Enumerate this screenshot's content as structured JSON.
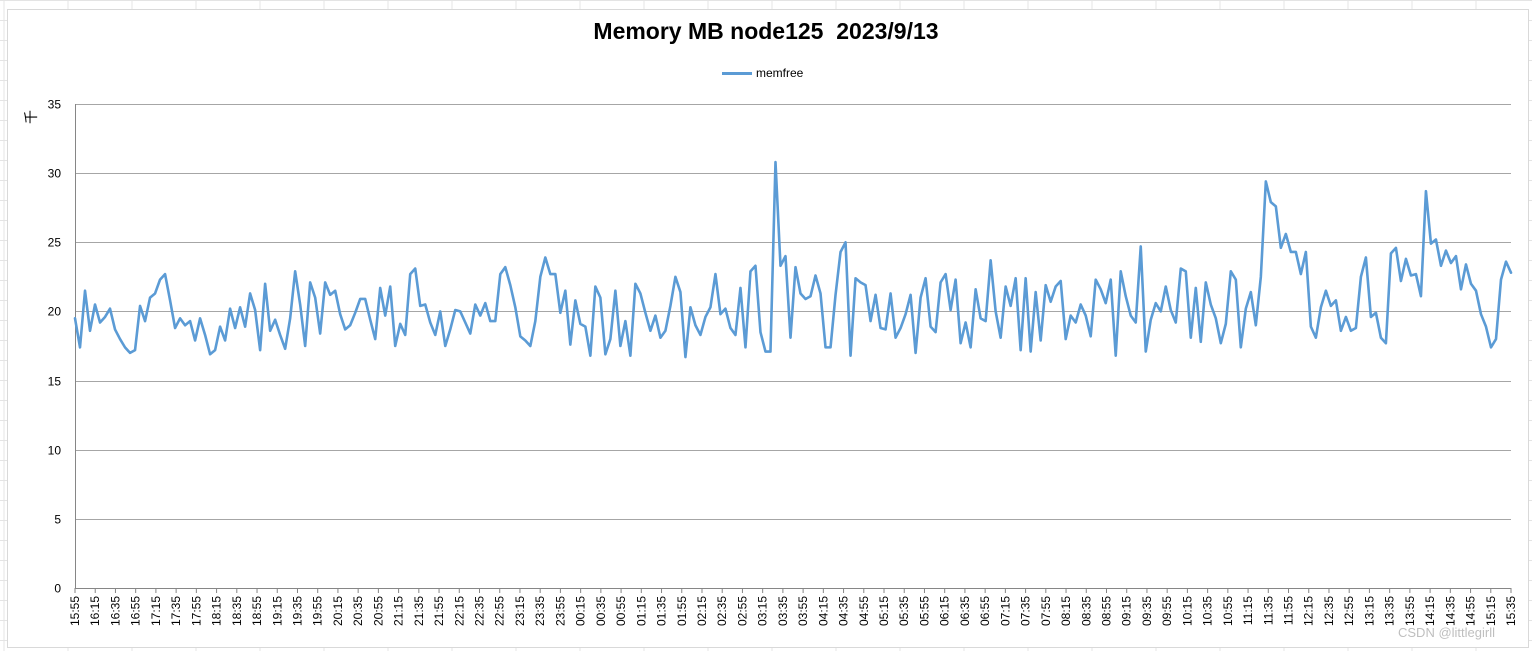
{
  "chart_data": {
    "type": "line",
    "title": "Memory MB node125  2023/9/13",
    "ylabel": "千",
    "legend": "top-center",
    "grid": true,
    "ylim": [
      0,
      35
    ],
    "y_ticks": [
      0,
      5,
      10,
      15,
      20,
      25,
      30,
      35
    ],
    "x_tick_labels": [
      "15:55",
      "16:15",
      "16:35",
      "16:55",
      "17:15",
      "17:35",
      "17:55",
      "18:15",
      "18:35",
      "18:55",
      "19:15",
      "19:35",
      "19:55",
      "20:15",
      "20:35",
      "20:55",
      "21:15",
      "21:35",
      "21:55",
      "22:15",
      "22:35",
      "22:55",
      "23:15",
      "23:35",
      "23:55",
      "00:15",
      "00:35",
      "00:55",
      "01:15",
      "01:35",
      "01:55",
      "02:15",
      "02:35",
      "02:55",
      "03:15",
      "03:35",
      "03:55",
      "04:15",
      "04:35",
      "04:55",
      "05:15",
      "05:35",
      "05:55",
      "06:15",
      "06:35",
      "06:55",
      "07:15",
      "07:35",
      "07:55",
      "08:15",
      "08:35",
      "08:55",
      "09:15",
      "09:35",
      "09:55",
      "10:15",
      "10:35",
      "10:55",
      "11:15",
      "11:35",
      "11:55",
      "12:15",
      "12:35",
      "12:55",
      "13:15",
      "13:35",
      "13:55",
      "14:15",
      "14:35",
      "14:55",
      "15:15",
      "15:35"
    ],
    "series": [
      {
        "name": "memfree",
        "color": "#5b9bd5",
        "values": [
          19.5,
          17.4,
          21.5,
          18.6,
          20.5,
          19.2,
          19.6,
          20.2,
          18.7,
          18.0,
          17.4,
          17.0,
          17.2,
          20.4,
          19.3,
          21.0,
          21.3,
          22.3,
          22.7,
          20.8,
          18.8,
          19.5,
          19.0,
          19.3,
          17.9,
          19.5,
          18.3,
          16.9,
          17.2,
          18.9,
          17.9,
          20.2,
          18.8,
          20.3,
          18.9,
          21.3,
          20.1,
          17.2,
          22.0,
          18.6,
          19.4,
          18.3,
          17.3,
          19.5,
          22.9,
          20.5,
          17.5,
          22.1,
          21.0,
          18.4,
          22.1,
          21.2,
          21.5,
          19.8,
          18.7,
          19.0,
          19.9,
          20.9,
          20.9,
          19.4,
          18.0,
          21.7,
          19.7,
          21.8,
          17.5,
          19.1,
          18.3,
          22.7,
          23.1,
          20.4,
          20.5,
          19.2,
          18.3,
          20.0,
          17.5,
          18.7,
          20.1,
          20.0,
          19.2,
          18.4,
          20.5,
          19.7,
          20.6,
          19.3,
          19.3,
          22.7,
          23.2,
          21.9,
          20.3,
          18.2,
          17.9,
          17.5,
          19.3,
          22.5,
          23.9,
          22.7,
          22.7,
          19.9,
          21.5,
          17.6,
          20.8,
          19.1,
          18.9,
          16.8,
          21.8,
          21.0,
          16.9,
          18.0,
          21.5,
          17.5,
          19.3,
          16.8,
          22.0,
          21.3,
          19.9,
          18.6,
          19.7,
          18.1,
          18.6,
          20.4,
          22.5,
          21.4,
          16.7,
          20.3,
          19.0,
          18.3,
          19.6,
          20.3,
          22.7,
          19.8,
          20.2,
          18.8,
          18.3,
          21.7,
          17.4,
          22.9,
          23.3,
          18.5,
          17.1,
          17.1,
          30.8,
          23.3,
          24.0,
          18.1,
          23.2,
          21.3,
          20.9,
          21.1,
          22.6,
          21.3,
          17.4,
          17.4,
          21.2,
          24.3,
          25.0,
          16.8,
          22.4,
          22.1,
          21.9,
          19.3,
          21.2,
          18.8,
          18.7,
          21.3,
          18.1,
          18.8,
          19.8,
          21.2,
          17.0,
          21.0,
          22.4,
          18.9,
          18.5,
          22.1,
          22.7,
          20.1,
          22.3,
          17.7,
          19.2,
          17.4,
          21.6,
          19.5,
          19.3,
          23.7,
          20.0,
          18.1,
          21.8,
          20.4,
          22.4,
          17.2,
          22.4,
          17.1,
          21.4,
          17.9,
          21.9,
          20.7,
          21.8,
          22.2,
          18.0,
          19.7,
          19.2,
          20.5,
          19.7,
          18.2,
          22.3,
          21.6,
          20.6,
          22.3,
          16.8,
          22.9,
          21.1,
          19.7,
          19.2,
          24.7,
          17.1,
          19.4,
          20.6,
          20.0,
          21.8,
          20.1,
          19.2,
          23.1,
          22.9,
          18.1,
          21.7,
          17.8,
          22.1,
          20.5,
          19.5,
          17.7,
          19.1,
          22.9,
          22.3,
          17.4,
          20.2,
          21.4,
          19.0,
          22.5,
          29.4,
          27.9,
          27.6,
          24.6,
          25.6,
          24.3,
          24.3,
          22.7,
          24.3,
          18.9,
          18.1,
          20.3,
          21.5,
          20.4,
          20.8,
          18.6,
          19.6,
          18.6,
          18.8,
          22.5,
          23.9,
          19.6,
          19.9,
          18.1,
          17.7,
          24.2,
          24.6,
          22.2,
          23.8,
          22.6,
          22.7,
          21.1,
          28.7,
          24.9,
          25.2,
          23.3,
          24.4,
          23.5,
          24.0,
          21.6,
          23.4,
          22.0,
          21.5,
          19.8,
          18.9,
          17.4,
          18.0,
          22.3,
          23.6,
          22.8
        ]
      }
    ]
  },
  "watermark": "CSDN @littlegirll"
}
